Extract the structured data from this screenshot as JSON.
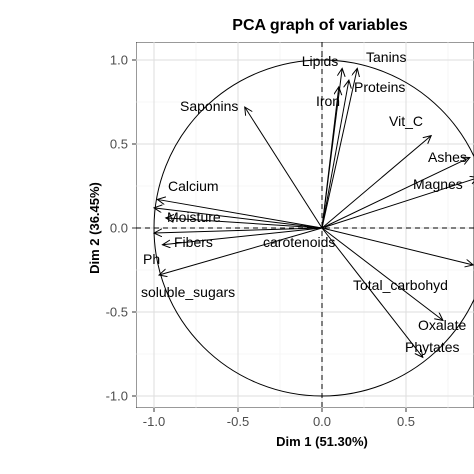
{
  "chart_data": {
    "type": "scatter",
    "title": "PCA graph of variables",
    "xlabel": "Dim 1 (51.30%)",
    "ylabel": "Dim 2 (36.45%)",
    "xlim": [
      -1.1,
      0.9
    ],
    "ylim": [
      -1.05,
      1.1
    ],
    "xticks": [
      -1.0,
      -0.5,
      0.0,
      0.5
    ],
    "xtick_labels": [
      "-1.0",
      "-0.5",
      "0.0",
      "0.5"
    ],
    "yticks": [
      1.0,
      0.5,
      0.0,
      -0.5,
      -1.0
    ],
    "ytick_labels": [
      "1.0",
      "0.5",
      "0.0",
      "-0.5",
      "-1.0"
    ],
    "grid": true,
    "unit_circle": true,
    "reference_lines": {
      "x": 0,
      "y": 0,
      "style": "dashed"
    },
    "vectors": [
      {
        "name": "Lipids",
        "x": 0.12,
        "y": 0.95
      },
      {
        "name": "Tanins",
        "x": 0.21,
        "y": 0.95
      },
      {
        "name": "Proteins",
        "x": 0.16,
        "y": 0.88
      },
      {
        "name": "Iron",
        "x": 0.1,
        "y": 0.84
      },
      {
        "name": "Saponins",
        "x": -0.46,
        "y": 0.72
      },
      {
        "name": "Vit_C",
        "x": 0.65,
        "y": 0.55
      },
      {
        "name": "Ashes",
        "x": 0.88,
        "y": 0.42
      },
      {
        "name": "Magnes",
        "x": 0.93,
        "y": 0.3
      },
      {
        "name": "Calcium",
        "x": -0.98,
        "y": 0.17
      },
      {
        "name": "Moisture",
        "x": -1.0,
        "y": 0.12
      },
      {
        "name": "Fibers",
        "x": -0.95,
        "y": -0.1
      },
      {
        "name": "carotenoids",
        "x": -0.93,
        "y": 0.06
      },
      {
        "name": "Ph",
        "x": -1.0,
        "y": -0.03
      },
      {
        "name": "soluble_sugars",
        "x": -0.97,
        "y": -0.28
      },
      {
        "name": "Total_carbohyd",
        "x": 0.9,
        "y": -0.22
      },
      {
        "name": "Oxalate",
        "x": 0.72,
        "y": -0.55
      },
      {
        "name": "Phytates",
        "x": 0.6,
        "y": -0.77
      }
    ]
  }
}
